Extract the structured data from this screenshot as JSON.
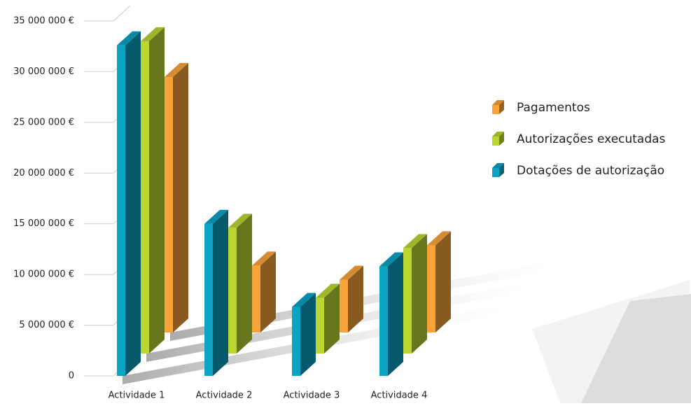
{
  "chart_data": {
    "type": "bar3d",
    "categories": [
      "Actividade 1",
      "Actividade 2",
      "Actividade 3",
      "Actividade 4"
    ],
    "series": [
      {
        "name": "Dotações de autorização",
        "color": "#0ba3c4",
        "values": [
          32600000,
          15000000,
          6800000,
          10800000
        ]
      },
      {
        "name": "Autorizações executadas",
        "color": "#bcd631",
        "values": [
          30800000,
          12400000,
          5500000,
          10400000
        ]
      },
      {
        "name": "Pagamentos",
        "color": "#f9a43a",
        "values": [
          25200000,
          6600000,
          5200000,
          8600000
        ]
      }
    ],
    "ylim": [
      0,
      35000000
    ],
    "yticks": [
      {
        "value": 0,
        "label": "0"
      },
      {
        "value": 5000000,
        "label": "5 000 000 €"
      },
      {
        "value": 10000000,
        "label": "10 000 000 €"
      },
      {
        "value": 15000000,
        "label": "15 000 000 €"
      },
      {
        "value": 20000000,
        "label": "20 000 000 €"
      },
      {
        "value": 25000000,
        "label": "25 000 000 €"
      },
      {
        "value": 30000000,
        "label": "30 000 000 €"
      },
      {
        "value": 35000000,
        "label": "35 000 000 €"
      }
    ],
    "grid": true
  }
}
